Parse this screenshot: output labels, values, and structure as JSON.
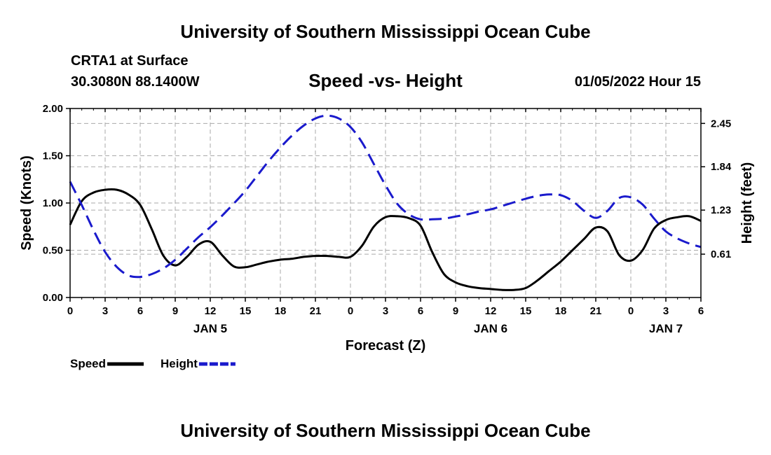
{
  "header": {
    "title": "University of Southern Mississippi Ocean Cube",
    "station": "CRTA1 at Surface",
    "coords": "30.3080N  88.1400W",
    "datestamp": "01/05/2022 Hour 15"
  },
  "footer": {
    "title": "University of Southern Mississippi Ocean Cube"
  },
  "chart_data": {
    "type": "line",
    "title": "Speed -vs- Height",
    "xlabel": "Forecast (Z)",
    "ylabel": "Speed (Knots)",
    "y2label": "Height (feet)",
    "x_range": [
      0,
      54
    ],
    "ylim": [
      0,
      2.0
    ],
    "y2lim": [
      0,
      2.66
    ],
    "grid": true,
    "legend_position": "bottom-left",
    "x_ticks": [
      {
        "x": 0,
        "label": "0"
      },
      {
        "x": 3,
        "label": "3"
      },
      {
        "x": 6,
        "label": "6"
      },
      {
        "x": 9,
        "label": "9"
      },
      {
        "x": 12,
        "label": "12"
      },
      {
        "x": 15,
        "label": "15"
      },
      {
        "x": 18,
        "label": "18"
      },
      {
        "x": 21,
        "label": "21"
      },
      {
        "x": 24,
        "label": "0"
      },
      {
        "x": 27,
        "label": "3"
      },
      {
        "x": 30,
        "label": "6"
      },
      {
        "x": 33,
        "label": "9"
      },
      {
        "x": 36,
        "label": "12"
      },
      {
        "x": 39,
        "label": "15"
      },
      {
        "x": 42,
        "label": "18"
      },
      {
        "x": 45,
        "label": "21"
      },
      {
        "x": 48,
        "label": "0"
      },
      {
        "x": 51,
        "label": "3"
      },
      {
        "x": 54,
        "label": "6"
      }
    ],
    "day_labels": [
      {
        "x": 12,
        "label": "JAN 5"
      },
      {
        "x": 36,
        "label": "JAN 6"
      },
      {
        "x": 51,
        "label": "JAN 7"
      }
    ],
    "y_ticks": [
      {
        "value": 0,
        "label": "0.00"
      },
      {
        "value": 0.5,
        "label": "0.50"
      },
      {
        "value": 1.0,
        "label": "1.00"
      },
      {
        "value": 1.5,
        "label": "1.50"
      },
      {
        "value": 2.0,
        "label": "2.00"
      }
    ],
    "y2_ticks": [
      {
        "value": 0.61,
        "label": "0.61"
      },
      {
        "value": 1.23,
        "label": "1.23"
      },
      {
        "value": 1.84,
        "label": "1.84"
      },
      {
        "value": 2.45,
        "label": "2.45"
      }
    ],
    "series": [
      {
        "name": "Speed",
        "axis": "left",
        "color": "#000000",
        "dash": "solid",
        "points": [
          [
            0,
            0.77
          ],
          [
            1,
            1.02
          ],
          [
            2,
            1.11
          ],
          [
            3,
            1.14
          ],
          [
            4,
            1.14
          ],
          [
            5,
            1.09
          ],
          [
            6,
            0.98
          ],
          [
            7,
            0.72
          ],
          [
            8,
            0.44
          ],
          [
            9,
            0.34
          ],
          [
            10,
            0.43
          ],
          [
            11,
            0.56
          ],
          [
            12,
            0.59
          ],
          [
            13,
            0.45
          ],
          [
            14,
            0.33
          ],
          [
            15,
            0.32
          ],
          [
            16,
            0.35
          ],
          [
            17,
            0.38
          ],
          [
            18,
            0.4
          ],
          [
            19,
            0.41
          ],
          [
            20,
            0.43
          ],
          [
            21,
            0.44
          ],
          [
            22,
            0.44
          ],
          [
            23,
            0.43
          ],
          [
            24,
            0.43
          ],
          [
            25,
            0.55
          ],
          [
            26,
            0.75
          ],
          [
            27,
            0.85
          ],
          [
            28,
            0.86
          ],
          [
            29,
            0.84
          ],
          [
            30,
            0.76
          ],
          [
            31,
            0.48
          ],
          [
            32,
            0.25
          ],
          [
            33,
            0.16
          ],
          [
            34,
            0.12
          ],
          [
            35,
            0.1
          ],
          [
            36,
            0.09
          ],
          [
            37,
            0.08
          ],
          [
            38,
            0.08
          ],
          [
            39,
            0.1
          ],
          [
            40,
            0.18
          ],
          [
            41,
            0.28
          ],
          [
            42,
            0.38
          ],
          [
            43,
            0.5
          ],
          [
            44,
            0.62
          ],
          [
            45,
            0.74
          ],
          [
            46,
            0.7
          ],
          [
            47,
            0.45
          ],
          [
            48,
            0.39
          ],
          [
            49,
            0.5
          ],
          [
            50,
            0.73
          ],
          [
            51,
            0.82
          ],
          [
            52,
            0.85
          ],
          [
            53,
            0.86
          ],
          [
            54,
            0.81
          ]
        ]
      },
      {
        "name": "Height",
        "axis": "right",
        "color": "#1a1acc",
        "dash": "dashed",
        "points": [
          [
            0,
            1.63
          ],
          [
            1,
            1.3
          ],
          [
            2,
            0.95
          ],
          [
            3,
            0.64
          ],
          [
            4,
            0.43
          ],
          [
            5,
            0.31
          ],
          [
            6,
            0.29
          ],
          [
            7,
            0.33
          ],
          [
            8,
            0.41
          ],
          [
            9,
            0.53
          ],
          [
            10,
            0.69
          ],
          [
            11,
            0.85
          ],
          [
            12,
            0.99
          ],
          [
            13,
            1.15
          ],
          [
            14,
            1.32
          ],
          [
            15,
            1.5
          ],
          [
            16,
            1.71
          ],
          [
            17,
            1.92
          ],
          [
            18,
            2.11
          ],
          [
            19,
            2.28
          ],
          [
            20,
            2.42
          ],
          [
            21,
            2.52
          ],
          [
            22,
            2.56
          ],
          [
            23,
            2.52
          ],
          [
            24,
            2.4
          ],
          [
            25,
            2.18
          ],
          [
            26,
            1.88
          ],
          [
            27,
            1.58
          ],
          [
            28,
            1.32
          ],
          [
            29,
            1.17
          ],
          [
            30,
            1.1
          ],
          [
            31,
            1.1
          ],
          [
            32,
            1.11
          ],
          [
            33,
            1.14
          ],
          [
            34,
            1.17
          ],
          [
            35,
            1.21
          ],
          [
            36,
            1.24
          ],
          [
            37,
            1.29
          ],
          [
            38,
            1.34
          ],
          [
            39,
            1.39
          ],
          [
            40,
            1.43
          ],
          [
            41,
            1.45
          ],
          [
            42,
            1.44
          ],
          [
            43,
            1.36
          ],
          [
            44,
            1.22
          ],
          [
            45,
            1.12
          ],
          [
            46,
            1.22
          ],
          [
            47,
            1.4
          ],
          [
            48,
            1.41
          ],
          [
            49,
            1.31
          ],
          [
            50,
            1.11
          ],
          [
            51,
            0.93
          ],
          [
            52,
            0.83
          ],
          [
            53,
            0.76
          ],
          [
            54,
            0.71
          ]
        ]
      }
    ]
  }
}
